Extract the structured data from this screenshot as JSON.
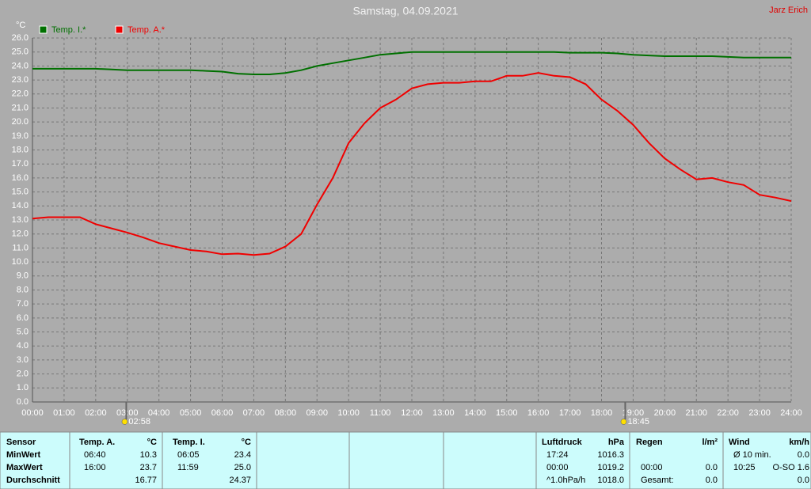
{
  "chart_data": {
    "type": "line",
    "title": "Samstag, 04.09.2021",
    "author": "Jarz Erich",
    "y_unit": "°C",
    "x": [
      0,
      0.5,
      1,
      1.5,
      2,
      2.5,
      3,
      3.5,
      4,
      4.5,
      5,
      5.5,
      6,
      6.5,
      7,
      7.5,
      8,
      8.5,
      9,
      9.5,
      10,
      10.5,
      11,
      11.5,
      12,
      12.5,
      13,
      13.5,
      14,
      14.5,
      15,
      15.5,
      16,
      16.5,
      17,
      17.5,
      18,
      18.5,
      19,
      19.5,
      20,
      20.5,
      21,
      21.5,
      22,
      22.5,
      23,
      23.5,
      24
    ],
    "series": [
      {
        "name": "Temp. I.*",
        "color": "#007000",
        "values": [
          23.8,
          23.8,
          23.8,
          23.8,
          23.8,
          23.75,
          23.7,
          23.7,
          23.7,
          23.7,
          23.7,
          23.65,
          23.6,
          23.45,
          23.4,
          23.4,
          23.5,
          23.7,
          24.0,
          24.2,
          24.4,
          24.6,
          24.8,
          24.9,
          25.0,
          25.0,
          25.0,
          25.0,
          25.0,
          25.0,
          25.0,
          25.0,
          25.0,
          25.0,
          24.95,
          24.95,
          24.95,
          24.9,
          24.8,
          24.75,
          24.7,
          24.7,
          24.7,
          24.7,
          24.65,
          24.6,
          24.6,
          24.6,
          24.6
        ]
      },
      {
        "name": "Temp. A.*",
        "color": "#f00000",
        "values": [
          13.1,
          13.2,
          13.2,
          13.2,
          12.7,
          12.4,
          12.1,
          11.75,
          11.35,
          11.1,
          10.85,
          10.75,
          10.55,
          10.6,
          10.5,
          10.6,
          11.1,
          12.0,
          14.1,
          16.0,
          18.5,
          19.9,
          21.0,
          21.6,
          22.4,
          22.7,
          22.8,
          22.8,
          22.9,
          22.9,
          23.3,
          23.3,
          23.5,
          23.3,
          23.2,
          22.7,
          21.6,
          20.8,
          19.8,
          18.5,
          17.4,
          16.6,
          15.9,
          16.0,
          15.7,
          15.5,
          14.8,
          14.6,
          14.35
        ]
      }
    ],
    "xlim": [
      0,
      24
    ],
    "ylim": [
      0,
      26
    ],
    "xticks": [
      {
        "value": 0,
        "label": "00:00"
      },
      {
        "value": 1,
        "label": "01:00"
      },
      {
        "value": 2,
        "label": "02:00"
      },
      {
        "value": 3,
        "label": "03:00"
      },
      {
        "value": 4,
        "label": "04:00"
      },
      {
        "value": 5,
        "label": "05:00"
      },
      {
        "value": 6,
        "label": "06:00"
      },
      {
        "value": 7,
        "label": "07:00"
      },
      {
        "value": 8,
        "label": "08:00"
      },
      {
        "value": 9,
        "label": "09:00"
      },
      {
        "value": 10,
        "label": "10:00"
      },
      {
        "value": 11,
        "label": "11:00"
      },
      {
        "value": 12,
        "label": "12:00"
      },
      {
        "value": 13,
        "label": "13:00"
      },
      {
        "value": 14,
        "label": "14:00"
      },
      {
        "value": 15,
        "label": "15:00"
      },
      {
        "value": 16,
        "label": "16:00"
      },
      {
        "value": 17,
        "label": "17:00"
      },
      {
        "value": 18,
        "label": "18:00"
      },
      {
        "value": 19,
        "label": "19:00"
      },
      {
        "value": 20,
        "label": "20:00"
      },
      {
        "value": 21,
        "label": "21:00"
      },
      {
        "value": 22,
        "label": "22:00"
      },
      {
        "value": 23,
        "label": "23:00"
      },
      {
        "value": 24,
        "label": "24:00"
      }
    ],
    "yticks": [
      {
        "value": 0,
        "label": "0.0"
      },
      {
        "value": 1,
        "label": "1.0"
      },
      {
        "value": 2,
        "label": "2.0"
      },
      {
        "value": 3,
        "label": "3.0"
      },
      {
        "value": 4,
        "label": "4.0"
      },
      {
        "value": 5,
        "label": "5.0"
      },
      {
        "value": 6,
        "label": "6.0"
      },
      {
        "value": 7,
        "label": "7.0"
      },
      {
        "value": 8,
        "label": "8.0"
      },
      {
        "value": 9,
        "label": "9.0"
      },
      {
        "value": 10,
        "label": "10.0"
      },
      {
        "value": 11,
        "label": "11.0"
      },
      {
        "value": 12,
        "label": "12.0"
      },
      {
        "value": 13,
        "label": "13.0"
      },
      {
        "value": 14,
        "label": "14.0"
      },
      {
        "value": 15,
        "label": "15.0"
      },
      {
        "value": 16,
        "label": "16.0"
      },
      {
        "value": 17,
        "label": "17.0"
      },
      {
        "value": 18,
        "label": "18.0"
      },
      {
        "value": 19,
        "label": "19.0"
      },
      {
        "value": 20,
        "label": "20.0"
      },
      {
        "value": 21,
        "label": "21.0"
      },
      {
        "value": 22,
        "label": "22.0"
      },
      {
        "value": 23,
        "label": "23.0"
      },
      {
        "value": 24,
        "label": "24.0"
      },
      {
        "value": 25,
        "label": "25.0"
      },
      {
        "value": 26,
        "label": "26.0"
      }
    ],
    "grid": true,
    "annotations": [
      {
        "x": 2.967,
        "label": "02:58"
      },
      {
        "x": 18.75,
        "label": "18:45"
      }
    ]
  },
  "table": {
    "rows": [
      [
        "Sensor",
        "Temp. A.",
        "°C",
        "Temp. I.",
        "°C",
        "Luftdruck",
        "hPa",
        "Regen",
        "l/m²",
        "Wind",
        "km/h"
      ],
      [
        "MinWert",
        "06:40",
        "10.3",
        "06:05",
        "23.4",
        "17:24",
        "1016.3",
        null,
        null,
        "Ø 10 min.",
        "0.0"
      ],
      [
        "MaxWert",
        "16:00",
        "23.7",
        "11:59",
        "25.0",
        "00:00",
        "1019.2",
        "00:00",
        "0.0",
        "10:25",
        "O-SO 1.6"
      ],
      [
        "Durchschnitt",
        null,
        "16.77",
        null,
        "24.37",
        "^1.0hPa/h",
        "1018.0",
        "Gesamt:",
        "0.0",
        null,
        "0.0"
      ]
    ]
  }
}
